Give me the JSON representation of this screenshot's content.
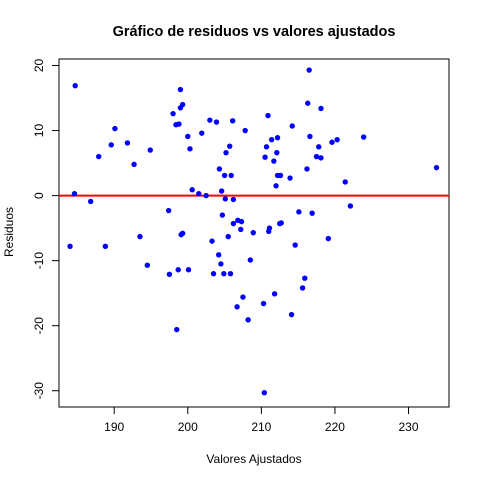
{
  "chart_data": {
    "type": "scatter",
    "title": "Gráfico de residuos vs valores ajustados",
    "xlabel": "Valores Ajustados",
    "ylabel": "Residuos",
    "xlim": [
      182.5,
      235.5
    ],
    "ylim": [
      -32.5,
      21
    ],
    "x_ticks": [
      190,
      200,
      210,
      220,
      230
    ],
    "x_tick_labels": [
      "190",
      "200",
      "210",
      "220",
      "230"
    ],
    "y_ticks": [
      -30,
      -20,
      -10,
      0,
      10,
      20
    ],
    "y_tick_labels": [
      "-30",
      "-20",
      "-10",
      "0",
      "10",
      "20"
    ],
    "grid": false,
    "reference_line": {
      "y": 0,
      "color": "#ff0000"
    },
    "point_color": "#0000ff",
    "points": [
      [
        184.7,
        16.9
      ],
      [
        184.6,
        0.3
      ],
      [
        184.0,
        -7.8
      ],
      [
        186.8,
        -0.9
      ],
      [
        187.9,
        6.0
      ],
      [
        188.8,
        -7.8
      ],
      [
        189.6,
        7.8
      ],
      [
        190.1,
        10.3
      ],
      [
        191.8,
        8.1
      ],
      [
        192.7,
        4.8
      ],
      [
        193.5,
        -6.3
      ],
      [
        194.5,
        -10.7
      ],
      [
        194.9,
        7.0
      ],
      [
        197.4,
        -2.3
      ],
      [
        197.5,
        -12.1
      ],
      [
        198.0,
        12.6
      ],
      [
        198.4,
        10.9
      ],
      [
        198.5,
        -20.6
      ],
      [
        198.7,
        -11.4
      ],
      [
        198.8,
        11.0
      ],
      [
        199.0,
        13.5
      ],
      [
        199.0,
        16.3
      ],
      [
        199.1,
        -6.0
      ],
      [
        199.3,
        -5.8
      ],
      [
        199.3,
        14.0
      ],
      [
        200.0,
        9.1
      ],
      [
        200.1,
        -11.4
      ],
      [
        200.3,
        7.2
      ],
      [
        200.6,
        0.9
      ],
      [
        201.5,
        0.3
      ],
      [
        201.9,
        9.6
      ],
      [
        202.5,
        0.0
      ],
      [
        203.0,
        11.6
      ],
      [
        203.3,
        -7.0
      ],
      [
        203.5,
        -12.0
      ],
      [
        203.9,
        11.3
      ],
      [
        204.2,
        -9.1
      ],
      [
        204.3,
        4.1
      ],
      [
        204.5,
        -10.5
      ],
      [
        204.6,
        0.7
      ],
      [
        204.7,
        -3.0
      ],
      [
        204.9,
        -12.0
      ],
      [
        205.0,
        3.1
      ],
      [
        205.1,
        -0.5
      ],
      [
        205.2,
        6.6
      ],
      [
        205.5,
        -6.3
      ],
      [
        205.7,
        7.6
      ],
      [
        205.8,
        -12.0
      ],
      [
        205.9,
        3.1
      ],
      [
        206.1,
        11.5
      ],
      [
        206.2,
        -0.6
      ],
      [
        206.2,
        -4.3
      ],
      [
        206.7,
        -17.1
      ],
      [
        206.8,
        -3.8
      ],
      [
        207.2,
        -5.2
      ],
      [
        207.3,
        -4.0
      ],
      [
        207.5,
        -15.6
      ],
      [
        207.8,
        10.0
      ],
      [
        208.2,
        -19.1
      ],
      [
        208.9,
        -5.7
      ],
      [
        208.5,
        -9.9
      ],
      [
        210.3,
        -16.6
      ],
      [
        210.4,
        -30.3
      ],
      [
        210.5,
        5.9
      ],
      [
        210.7,
        7.5
      ],
      [
        210.9,
        12.3
      ],
      [
        211.0,
        -5.5
      ],
      [
        211.1,
        -5.0
      ],
      [
        211.4,
        8.6
      ],
      [
        211.7,
        5.3
      ],
      [
        211.8,
        -15.1
      ],
      [
        212.0,
        1.5
      ],
      [
        212.1,
        6.6
      ],
      [
        212.2,
        8.9
      ],
      [
        212.2,
        3.1
      ],
      [
        212.5,
        -4.3
      ],
      [
        212.6,
        3.1
      ],
      [
        212.7,
        -4.2
      ],
      [
        213.9,
        2.7
      ],
      [
        214.1,
        -18.3
      ],
      [
        214.2,
        10.7
      ],
      [
        214.6,
        -7.6
      ],
      [
        215.1,
        -2.5
      ],
      [
        215.6,
        -14.2
      ],
      [
        215.9,
        -12.7
      ],
      [
        216.2,
        4.1
      ],
      [
        216.3,
        14.2
      ],
      [
        216.5,
        19.3
      ],
      [
        216.6,
        9.1
      ],
      [
        216.9,
        -2.7
      ],
      [
        217.5,
        6.0
      ],
      [
        217.8,
        7.5
      ],
      [
        218.1,
        5.8
      ],
      [
        218.1,
        13.4
      ],
      [
        219.1,
        -6.6
      ],
      [
        219.6,
        8.2
      ],
      [
        220.3,
        8.6
      ],
      [
        221.4,
        2.1
      ],
      [
        222.1,
        -1.6
      ],
      [
        223.9,
        9.0
      ],
      [
        233.8,
        4.3
      ]
    ]
  }
}
